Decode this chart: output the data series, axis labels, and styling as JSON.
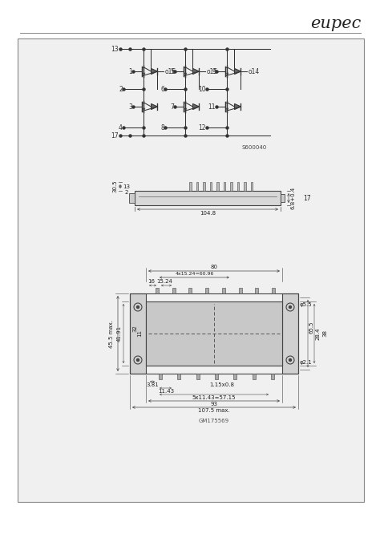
{
  "bg_color": "#ffffff",
  "inner_bg": "#f8f8f8",
  "border_color": "#222222",
  "line_color": "#444444",
  "eupec_text": "eupec",
  "schematic_label": "S600040",
  "dim_label": "GM175569",
  "page_bg": "#e8e8e8"
}
